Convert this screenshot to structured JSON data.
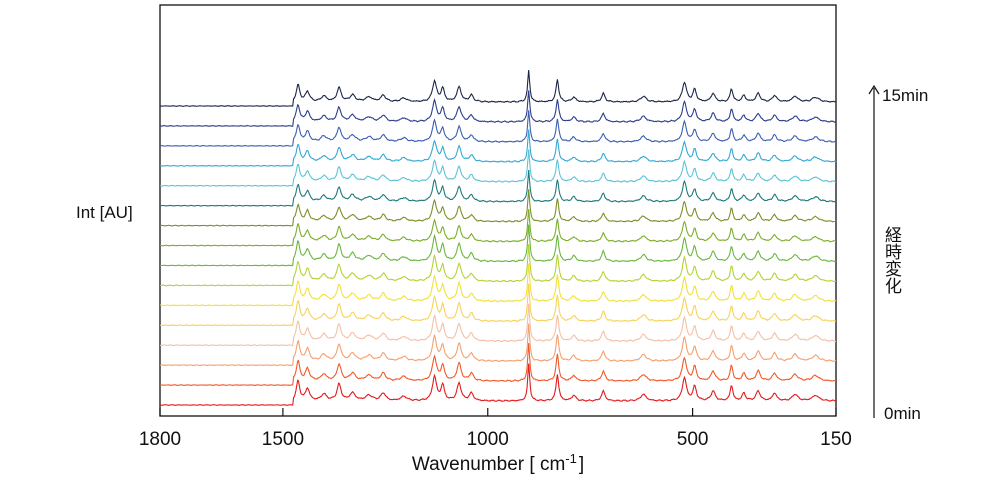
{
  "chart_data": {
    "type": "line",
    "title": "",
    "xlabel": "Wavenumber [ cm",
    "xlabel_sup": "-1",
    "xlabel_end": "]",
    "ylabel": "Int [AU]",
    "xlim": [
      1800,
      150
    ],
    "x_reversed": true,
    "x_ticks": [
      1800,
      1500,
      1000,
      500,
      150
    ],
    "x_tick_labels": [
      "1800",
      "1500",
      "1000",
      "500",
      "150"
    ],
    "time_axis": {
      "label": "経時変化",
      "start": "0min",
      "end": "15min"
    },
    "series_count": 16,
    "series_colors": [
      "#e41a1c",
      "#f2592a",
      "#f5a070",
      "#f4c0a8",
      "#f7d25a",
      "#f3e03a",
      "#b5d334",
      "#6ab73e",
      "#7cae2a",
      "#7c8f2a",
      "#1f7a7a",
      "#5cc3d8",
      "#32a9d4",
      "#3b5fb0",
      "#2b3e8a",
      "#1c2547",
      "#7b2f8f",
      "#c470c0"
    ],
    "peaks": [
      {
        "x": 1463,
        "amp": 0.9,
        "w": 5
      },
      {
        "x": 1440,
        "amp": 0.55,
        "w": 6
      },
      {
        "x": 1400,
        "amp": 0.3,
        "w": 8
      },
      {
        "x": 1363,
        "amp": 0.75,
        "w": 6
      },
      {
        "x": 1330,
        "amp": 0.35,
        "w": 8
      },
      {
        "x": 1290,
        "amp": 0.25,
        "w": 10
      },
      {
        "x": 1255,
        "amp": 0.35,
        "w": 7
      },
      {
        "x": 1205,
        "amp": 0.2,
        "w": 9
      },
      {
        "x": 1130,
        "amp": 1.1,
        "w": 6
      },
      {
        "x": 1110,
        "amp": 0.7,
        "w": 5
      },
      {
        "x": 1070,
        "amp": 0.8,
        "w": 6
      },
      {
        "x": 1040,
        "amp": 0.35,
        "w": 6
      },
      {
        "x": 900,
        "amp": 1.7,
        "w": 3
      },
      {
        "x": 830,
        "amp": 1.2,
        "w": 4
      },
      {
        "x": 790,
        "amp": 0.25,
        "w": 6
      },
      {
        "x": 718,
        "amp": 0.45,
        "w": 5
      },
      {
        "x": 620,
        "amp": 0.3,
        "w": 8
      },
      {
        "x": 520,
        "amp": 1.05,
        "w": 6
      },
      {
        "x": 495,
        "amp": 0.65,
        "w": 5
      },
      {
        "x": 450,
        "amp": 0.45,
        "w": 6
      },
      {
        "x": 405,
        "amp": 0.7,
        "w": 4
      },
      {
        "x": 375,
        "amp": 0.35,
        "w": 5
      },
      {
        "x": 340,
        "amp": 0.45,
        "w": 6
      },
      {
        "x": 300,
        "amp": 0.35,
        "w": 6
      },
      {
        "x": 250,
        "amp": 0.3,
        "w": 8
      },
      {
        "x": 200,
        "amp": 0.25,
        "w": 10
      }
    ]
  }
}
